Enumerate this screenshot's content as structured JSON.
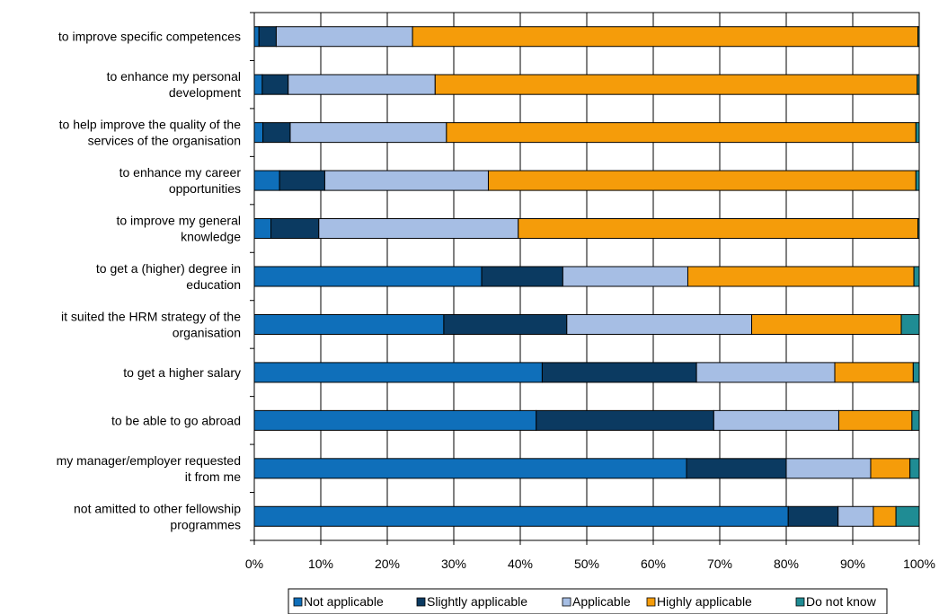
{
  "chart_data": {
    "type": "bar",
    "orientation": "horizontal",
    "stacked": true,
    "title": "",
    "xlabel": "",
    "ylabel": "",
    "xlim": [
      0,
      100
    ],
    "x_ticks": [
      "0%",
      "10%",
      "20%",
      "30%",
      "40%",
      "50%",
      "60%",
      "70%",
      "80%",
      "90%",
      "100%"
    ],
    "legend_position": "bottom",
    "categories": [
      [
        "to improve specific competences"
      ],
      [
        "to enhance my personal",
        "development"
      ],
      [
        "to help improve the quality of the",
        "services of the organisation"
      ],
      [
        "to enhance my career",
        "opportunities"
      ],
      [
        "to improve my general",
        "knowledge"
      ],
      [
        "to get a (higher) degree in",
        "education"
      ],
      [
        "it suited the HRM strategy of the",
        "organisation"
      ],
      [
        "to get a higher salary"
      ],
      [
        "to be able to go abroad"
      ],
      [
        "my manager/employer requested",
        "it from me"
      ],
      [
        "not amitted to other fellowship",
        "programmes"
      ]
    ],
    "series": [
      {
        "name": "Not applicable",
        "color": "#0f6fba",
        "values": [
          0.7,
          1.2,
          1.3,
          3.8,
          2.5,
          34.2,
          28.5,
          43.3,
          42.4,
          65.0,
          80.3
        ]
      },
      {
        "name": "Slightly applicable",
        "color": "#0b3a61",
        "values": [
          2.6,
          3.9,
          4.1,
          6.8,
          7.2,
          12.2,
          18.5,
          23.2,
          26.7,
          15.0,
          7.5
        ]
      },
      {
        "name": "Applicable",
        "color": "#a6bee4",
        "values": [
          20.5,
          22.1,
          23.5,
          24.6,
          30.0,
          18.8,
          27.8,
          20.8,
          18.8,
          12.7,
          5.3
        ]
      },
      {
        "name": "Highly applicable",
        "color": "#f59c0a",
        "values": [
          76.0,
          72.5,
          70.6,
          64.3,
          60.1,
          34.0,
          22.5,
          11.8,
          11.0,
          5.9,
          3.4
        ]
      },
      {
        "name": "Do not know",
        "color": "#1f8c94",
        "values": [
          0.2,
          0.3,
          0.5,
          0.5,
          0.2,
          0.8,
          2.7,
          0.9,
          1.1,
          1.4,
          3.5
        ]
      }
    ]
  }
}
